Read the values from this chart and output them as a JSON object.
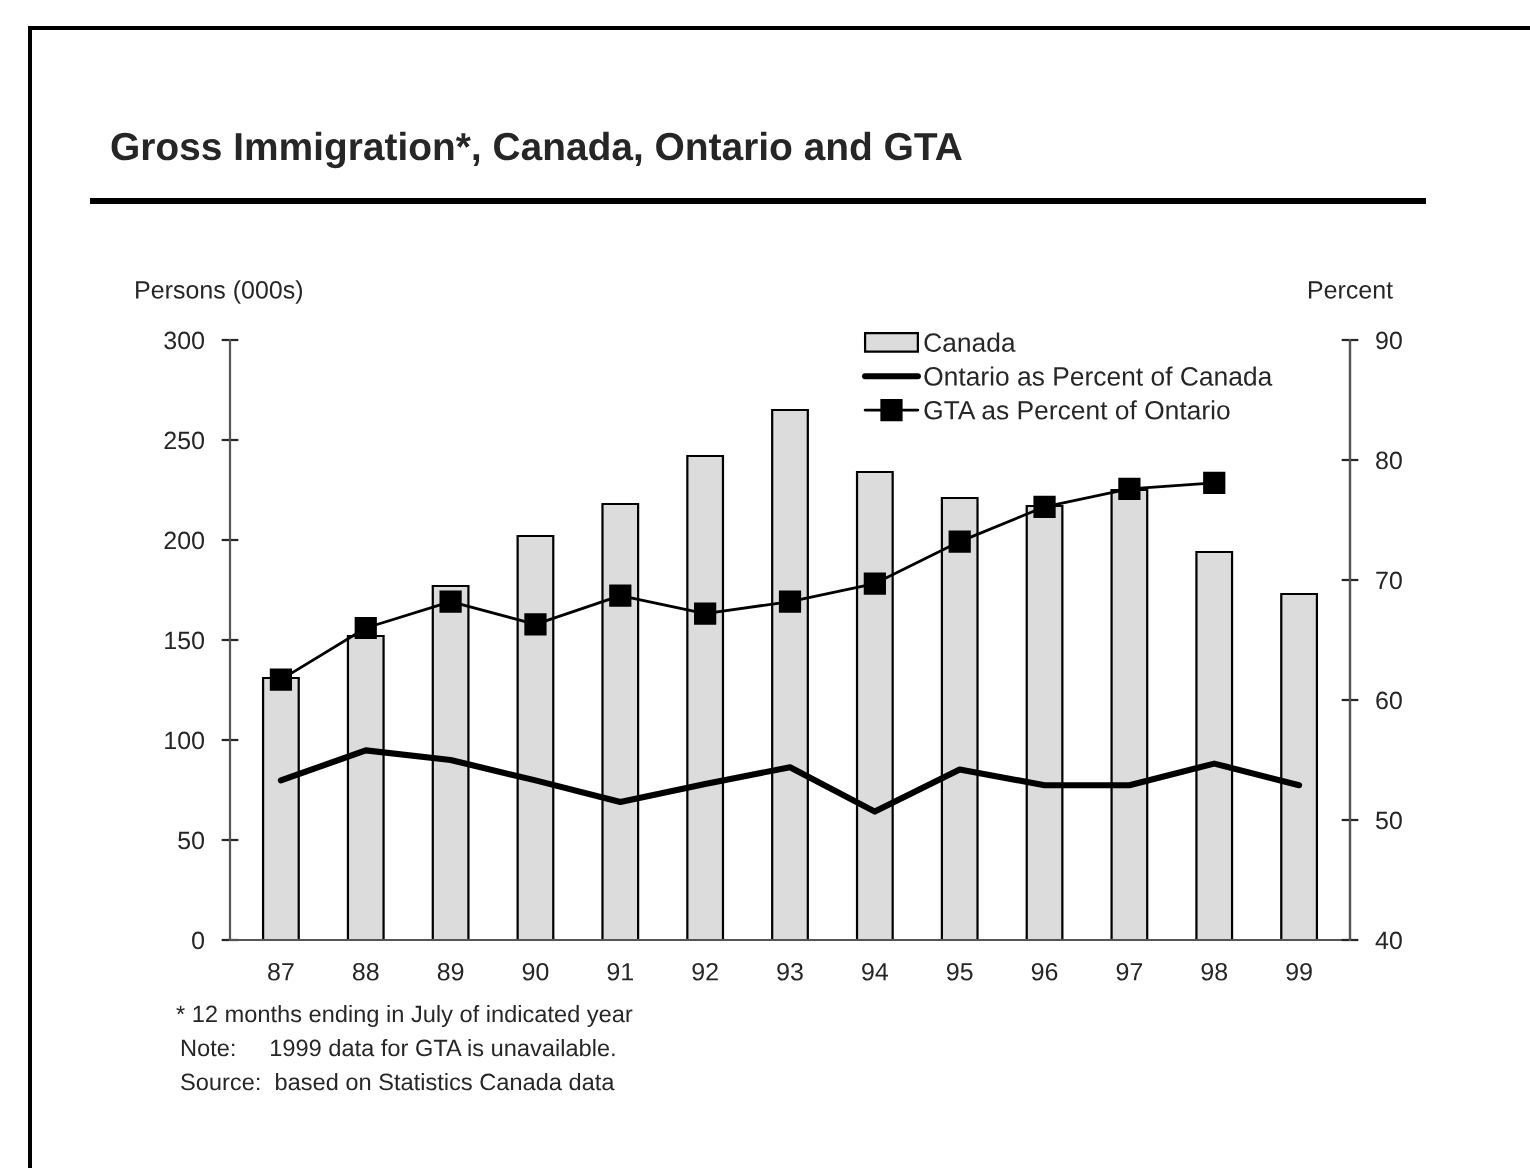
{
  "chart_data": {
    "type": "bar",
    "title": "Gross Immigration*, Canada, Ontario and GTA",
    "ylabel": "Persons (000s)",
    "y2label": "Percent",
    "categories": [
      "87",
      "88",
      "89",
      "90",
      "91",
      "92",
      "93",
      "94",
      "95",
      "96",
      "97",
      "98",
      "99"
    ],
    "series": [
      {
        "name": "Canada",
        "type": "bar",
        "color": "#dcdcdc",
        "values": [
          131,
          152,
          177,
          202,
          218,
          242,
          265,
          234,
          221,
          217,
          225,
          194,
          173
        ]
      },
      {
        "name": "Ontario as Percent of Canada",
        "type": "line",
        "axis": "y2",
        "color": "#000000",
        "marker": "none",
        "values": [
          53.3,
          55.8,
          55,
          53.3,
          51.5,
          53,
          54.4,
          50.7,
          54.2,
          52.9,
          52.9,
          54.7,
          52.9
        ]
      },
      {
        "name": "GTA as Percent of Ontario",
        "type": "line",
        "axis": "y2",
        "color": "#000000",
        "marker": "square",
        "values": [
          61.7,
          66,
          68.2,
          66.3,
          68.7,
          67.2,
          68.2,
          69.7,
          73.2,
          76.1,
          77.6,
          78.1,
          null
        ]
      }
    ],
    "ylim": [
      0,
      300
    ],
    "yticks": [
      0,
      50,
      100,
      150,
      200,
      250,
      300
    ],
    "y2lim": [
      40,
      90
    ],
    "y2ticks": [
      40,
      50,
      60,
      70,
      80,
      90
    ],
    "grid": false,
    "legend": "top right",
    "annotations": [
      "* 12 months ending in July of indicated year",
      "Note:     1999 data for GTA is unavailable.",
      "Source:  based on Statistics Canada data"
    ]
  }
}
